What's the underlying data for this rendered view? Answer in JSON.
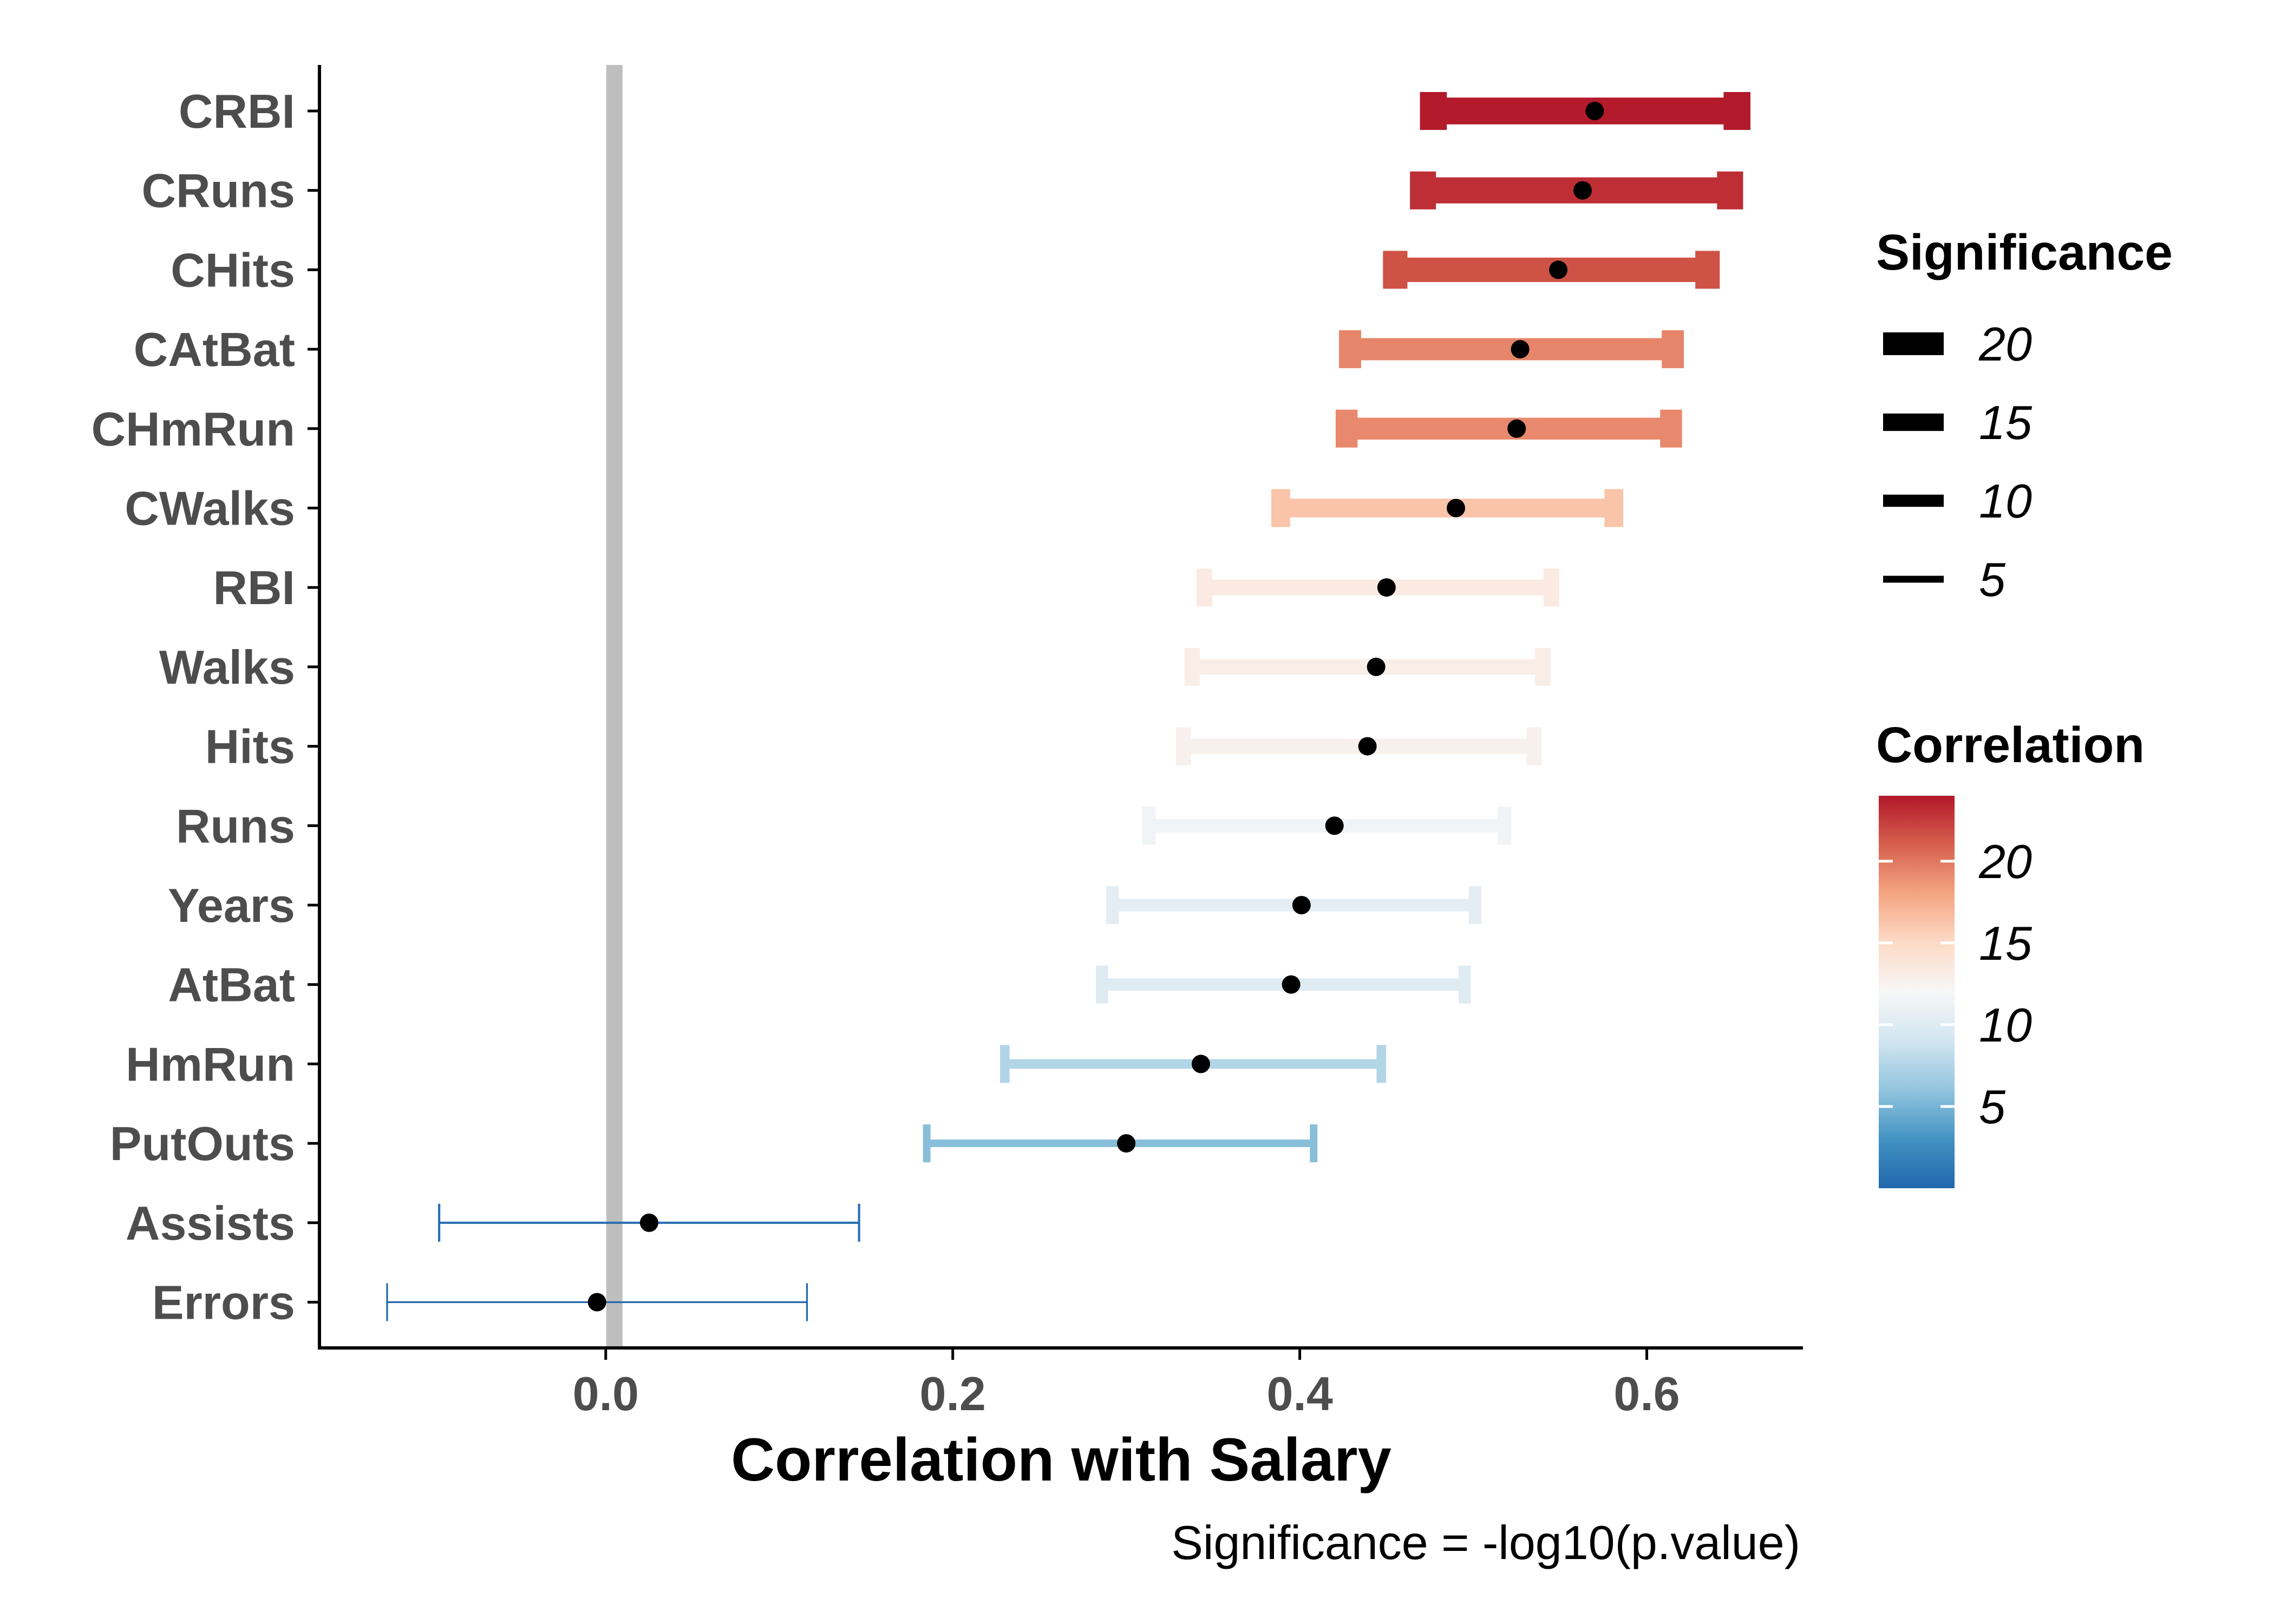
{
  "chart_data": {
    "type": "errorbar",
    "xlabel": "Correlation with Salary",
    "caption": "Significance = -log10(p.value)",
    "xlim": [
      -0.165,
      0.69
    ],
    "xticks": [
      0.0,
      0.2,
      0.4,
      0.6
    ],
    "xtick_labels": [
      "0.0",
      "0.2",
      "0.4",
      "0.6"
    ],
    "reference_line_x": 0.005,
    "series": [
      {
        "name": "CRBI",
        "estimate": 0.57,
        "low": 0.477,
        "high": 0.652,
        "significance": 23.9
      },
      {
        "name": "CRuns",
        "estimate": 0.563,
        "low": 0.471,
        "high": 0.648,
        "significance": 23.1
      },
      {
        "name": "CHits",
        "estimate": 0.549,
        "low": 0.455,
        "high": 0.635,
        "significance": 21.6
      },
      {
        "name": "CAtBat",
        "estimate": 0.527,
        "low": 0.429,
        "high": 0.615,
        "significance": 19.4
      },
      {
        "name": "CHmRun",
        "estimate": 0.525,
        "low": 0.427,
        "high": 0.614,
        "significance": 19.2
      },
      {
        "name": "CWalks",
        "estimate": 0.49,
        "low": 0.389,
        "high": 0.581,
        "significance": 16.3
      },
      {
        "name": "RBI",
        "estimate": 0.45,
        "low": 0.345,
        "high": 0.545,
        "significance": 13.4
      },
      {
        "name": "Walks",
        "estimate": 0.444,
        "low": 0.338,
        "high": 0.54,
        "significance": 13.0
      },
      {
        "name": "Hits",
        "estimate": 0.439,
        "low": 0.333,
        "high": 0.535,
        "significance": 12.7
      },
      {
        "name": "Runs",
        "estimate": 0.42,
        "low": 0.313,
        "high": 0.518,
        "significance": 11.5
      },
      {
        "name": "Years",
        "estimate": 0.401,
        "low": 0.292,
        "high": 0.501,
        "significance": 10.4
      },
      {
        "name": "AtBat",
        "estimate": 0.395,
        "low": 0.286,
        "high": 0.495,
        "significance": 10.0
      },
      {
        "name": "HmRun",
        "estimate": 0.343,
        "low": 0.23,
        "high": 0.447,
        "significance": 7.5
      },
      {
        "name": "PutOuts",
        "estimate": 0.3,
        "low": 0.185,
        "high": 0.408,
        "significance": 5.6
      },
      {
        "name": "Assists",
        "estimate": 0.025,
        "low": -0.096,
        "high": 0.146,
        "significance": 0.6
      },
      {
        "name": "Errors",
        "estimate": -0.005,
        "low": -0.126,
        "high": 0.116,
        "significance": 0.1
      }
    ],
    "legend_size": {
      "title": "Significance",
      "values": [
        20,
        15,
        10,
        5
      ],
      "labels": [
        "20",
        "15",
        "10",
        "5"
      ]
    },
    "legend_color": {
      "title": "Correlation",
      "min": 0,
      "max": 24,
      "ticks": [
        5,
        10,
        15,
        20
      ],
      "tick_labels": [
        "5",
        "10",
        "15",
        "20"
      ],
      "scale": "RdBu (reversed)"
    },
    "colors": {
      "reference_line": "#bebebe",
      "axis": "#000000",
      "point": "#000000",
      "palette": [
        "#2166ac",
        "#4393c3",
        "#92c5de",
        "#d1e5f0",
        "#f7f7f7",
        "#fddbc7",
        "#f4a582",
        "#d6604d",
        "#b2182b"
      ]
    }
  }
}
